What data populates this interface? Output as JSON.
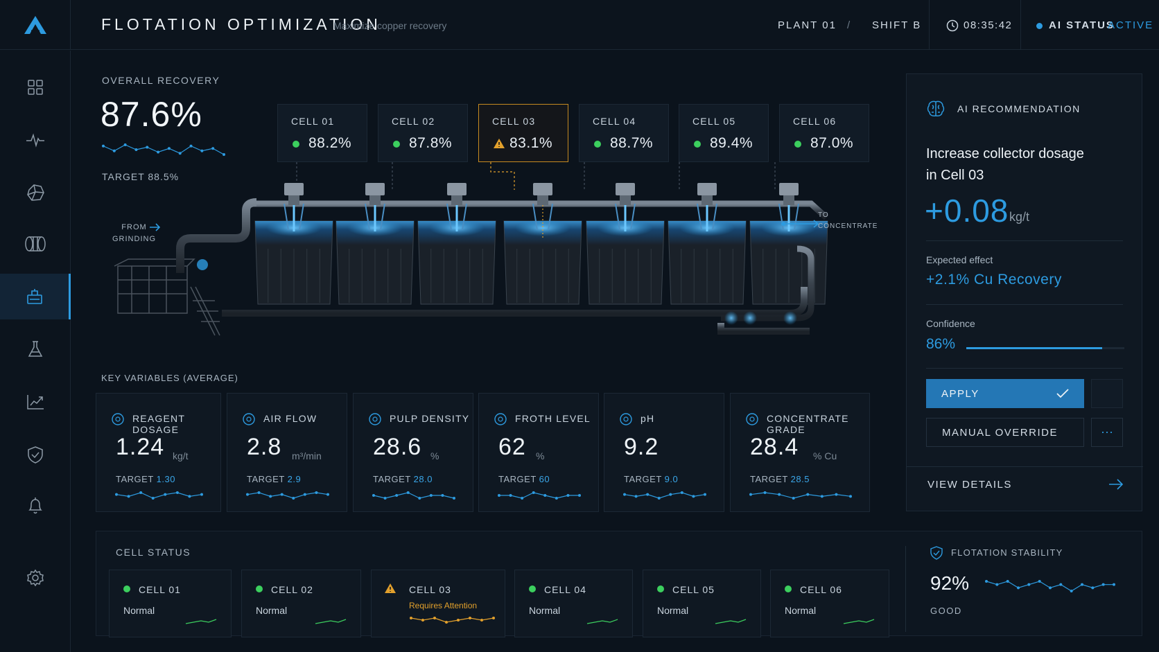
{
  "header": {
    "title": "FLOTATION OPTIMIZATION",
    "subtitle": "Maximize copper recovery",
    "plant": "PLANT 01",
    "separator": "/",
    "shift": "SHIFT B",
    "time": "08:35:42",
    "ai_status_label": "AI STATUS",
    "ai_status_value": "ACTIVE"
  },
  "sidebar": {
    "items": [
      {
        "icon": "dashboard-grid-icon"
      },
      {
        "icon": "pulse-icon"
      },
      {
        "icon": "ore-rock-icon"
      },
      {
        "icon": "mill-drum-icon"
      },
      {
        "icon": "flotation-cell-icon",
        "active": true
      },
      {
        "icon": "lab-flask-icon"
      },
      {
        "icon": "trend-chart-icon"
      },
      {
        "icon": "shield-check-icon"
      },
      {
        "icon": "bell-icon"
      },
      {
        "icon": "gear-icon"
      }
    ]
  },
  "recovery": {
    "label": "OVERALL RECOVERY",
    "value": "87.6%",
    "target": "TARGET 88.5%",
    "trend": [
      54,
      50,
      55,
      51,
      53,
      49,
      52,
      48,
      54,
      50,
      52,
      47
    ]
  },
  "cells": [
    {
      "name": "CELL 01",
      "value": "88.2%",
      "status": "ok"
    },
    {
      "name": "CELL 02",
      "value": "87.8%",
      "status": "ok"
    },
    {
      "name": "CELL 03",
      "value": "83.1%",
      "status": "warning"
    },
    {
      "name": "CELL 04",
      "value": "88.7%",
      "status": "ok"
    },
    {
      "name": "CELL 05",
      "value": "89.4%",
      "status": "ok"
    },
    {
      "name": "CELL 06",
      "value": "87.0%",
      "status": "ok"
    }
  ],
  "process": {
    "from_label": "FROM\nGRINDING",
    "to_label": "TO\nCONCENTRATE"
  },
  "key_variables": {
    "title": "KEY VARIABLES (AVERAGE)",
    "items": [
      {
        "name": "REAGENT DOSAGE",
        "icon": "flask-icon",
        "value": "1.24",
        "unit": "kg/t",
        "target_label": "TARGET",
        "target": "1.30",
        "trend": [
          5,
          4,
          6,
          3,
          5,
          6,
          4,
          5
        ]
      },
      {
        "name": "AIR FLOW",
        "icon": "wind-icon",
        "value": "2.8",
        "unit": "m³/min",
        "target_label": "TARGET",
        "target": "2.9",
        "trend": [
          5,
          6,
          4,
          5,
          3,
          5,
          6,
          5
        ]
      },
      {
        "name": "PULP DENSITY",
        "icon": "density-icon",
        "value": "28.6",
        "unit": "%",
        "target_label": "TARGET",
        "target": "28.0",
        "trend": [
          5,
          4,
          5,
          6,
          4,
          5,
          5,
          4
        ]
      },
      {
        "name": "FROTH LEVEL",
        "icon": "waves-icon",
        "value": "62",
        "unit": "%",
        "target_label": "TARGET",
        "target": "60",
        "trend": [
          5,
          5,
          4,
          6,
          5,
          4,
          5,
          5
        ]
      },
      {
        "name": "pH",
        "icon": "drop-icon",
        "value": "9.2",
        "unit": "",
        "target_label": "TARGET",
        "target": "9.0",
        "trend": [
          5,
          4,
          5,
          3,
          5,
          6,
          4,
          5
        ]
      },
      {
        "name": "CONCENTRATE GRADE",
        "icon": "target-icon",
        "value": "28.4",
        "unit": "% Cu",
        "target_label": "TARGET",
        "target": "28.5",
        "trend": [
          5,
          6,
          5,
          3,
          5,
          4,
          5,
          4
        ]
      }
    ]
  },
  "ai_recommendation": {
    "title": "AI RECOMMENDATION",
    "text_line1": "Increase collector dosage",
    "text_line2": "in Cell 03",
    "delta": "+0.08",
    "delta_unit": "kg/t",
    "expected_label": "Expected effect",
    "expected_value": "+2.1% Cu Recovery",
    "confidence_label": "Confidence",
    "confidence_value": "86%",
    "confidence_fraction": 0.86,
    "apply_label": "APPLY",
    "manual_label": "MANUAL OVERRIDE",
    "more_label": "···",
    "details_label": "VIEW DETAILS"
  },
  "cell_status": {
    "title": "CELL STATUS",
    "items": [
      {
        "name": "CELL 01",
        "status": "Normal",
        "level": "ok"
      },
      {
        "name": "CELL 02",
        "status": "Normal",
        "level": "ok"
      },
      {
        "name": "CELL 03",
        "status": "Requires Attention",
        "level": "warning"
      },
      {
        "name": "CELL 04",
        "status": "Normal",
        "level": "ok"
      },
      {
        "name": "CELL 05",
        "status": "Normal",
        "level": "ok"
      },
      {
        "name": "CELL 06",
        "status": "Normal",
        "level": "ok"
      }
    ]
  },
  "stability": {
    "title": "FLOTATION STABILITY",
    "value": "92%",
    "rating": "GOOD",
    "trend": [
      6,
      5,
      6,
      4,
      5,
      6,
      4,
      5,
      3,
      5,
      4,
      5,
      5
    ]
  },
  "colors": {
    "accent": "#2d9be0",
    "ok": "#3ccf5e",
    "warning": "#e2a02c",
    "background": "#0b131c"
  }
}
